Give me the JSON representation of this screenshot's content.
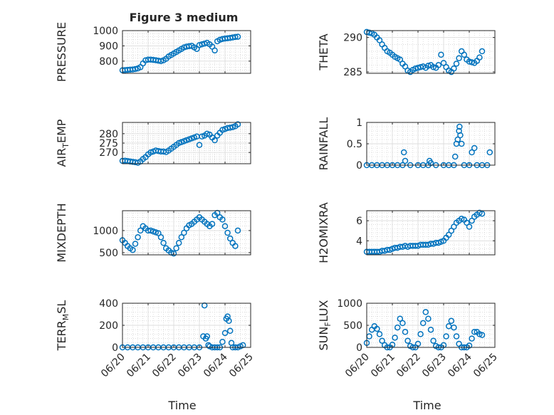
{
  "figure_title": "Figure 3 medium",
  "colors": {
    "marker": "#0072BD",
    "axes": "#262626",
    "grid": "#c8c8c8",
    "background": "#ffffff"
  },
  "chart_data": [
    {
      "type": "scatter",
      "name": "pressure",
      "ylabel": "PRESSURE",
      "xlim": [
        "06/20",
        "06/25"
      ],
      "ylim": [
        720,
        1000
      ],
      "yticks": [
        800,
        900,
        1000
      ],
      "grid": true,
      "marker": "open-circle",
      "x": [
        0.0,
        0.1,
        0.2,
        0.3,
        0.4,
        0.5,
        0.6,
        0.7,
        0.8,
        0.9,
        1.0,
        1.1,
        1.2,
        1.3,
        1.4,
        1.5,
        1.6,
        1.7,
        1.8,
        1.9,
        2.0,
        2.1,
        2.2,
        2.3,
        2.4,
        2.5,
        2.6,
        2.7,
        2.8,
        2.9,
        3.0,
        3.1,
        3.2,
        3.3,
        3.4,
        3.5,
        3.6,
        3.7,
        3.8,
        3.9,
        4.0,
        4.1,
        4.2,
        4.3,
        4.4,
        4.5
      ],
      "y": [
        740,
        741,
        743,
        744,
        745,
        748,
        752,
        760,
        785,
        805,
        810,
        810,
        808,
        806,
        803,
        800,
        805,
        815,
        830,
        840,
        850,
        860,
        870,
        880,
        890,
        895,
        898,
        900,
        890,
        880,
        905,
        910,
        915,
        920,
        910,
        895,
        870,
        930,
        940,
        945,
        948,
        950,
        952,
        955,
        958,
        960
      ]
    },
    {
      "type": "scatter",
      "name": "theta",
      "ylabel": "THETA",
      "xlim": [
        "06/20",
        "06/25"
      ],
      "ylim": [
        284.8,
        291
      ],
      "yticks": [
        285,
        290
      ],
      "grid": true,
      "marker": "open-circle",
      "x": [
        0.0,
        0.1,
        0.2,
        0.3,
        0.4,
        0.5,
        0.6,
        0.7,
        0.8,
        0.9,
        1.0,
        1.1,
        1.2,
        1.3,
        1.4,
        1.5,
        1.6,
        1.7,
        1.8,
        1.9,
        2.0,
        2.1,
        2.2,
        2.3,
        2.4,
        2.5,
        2.6,
        2.7,
        2.8,
        2.9,
        3.0,
        3.1,
        3.2,
        3.3,
        3.4,
        3.5,
        3.6,
        3.7,
        3.8,
        3.9,
        4.0,
        4.1,
        4.2,
        4.3,
        4.4,
        4.5
      ],
      "y": [
        290.8,
        290.7,
        290.6,
        290.4,
        290.0,
        289.6,
        289.0,
        288.5,
        288.0,
        287.8,
        287.5,
        287.2,
        287.0,
        286.8,
        286.2,
        285.8,
        285.2,
        285.0,
        285.3,
        285.5,
        285.6,
        285.7,
        285.8,
        285.6,
        285.9,
        286.0,
        285.7,
        285.6,
        286.0,
        287.5,
        286.3,
        285.7,
        285.2,
        285.0,
        285.5,
        286.2,
        287.0,
        288.0,
        287.5,
        286.8,
        286.5,
        286.4,
        286.3,
        286.6,
        287.1,
        288.0
      ]
    },
    {
      "type": "scatter",
      "name": "air_temp",
      "ylabel": "AIR_TEMP",
      "xlim": [
        "06/20",
        "06/25"
      ],
      "ylim": [
        264,
        286
      ],
      "yticks": [
        270,
        275,
        280
      ],
      "grid": true,
      "marker": "open-circle",
      "x": [
        0.0,
        0.1,
        0.2,
        0.3,
        0.4,
        0.5,
        0.6,
        0.7,
        0.8,
        0.9,
        1.0,
        1.1,
        1.2,
        1.3,
        1.4,
        1.5,
        1.6,
        1.7,
        1.8,
        1.9,
        2.0,
        2.1,
        2.2,
        2.3,
        2.4,
        2.5,
        2.6,
        2.7,
        2.8,
        2.9,
        3.0,
        3.1,
        3.2,
        3.3,
        3.4,
        3.5,
        3.6,
        3.7,
        3.8,
        3.9,
        4.0,
        4.1,
        4.2,
        4.3,
        4.4,
        4.5
      ],
      "y": [
        265.5,
        265.6,
        265.4,
        265.2,
        265.0,
        264.8,
        264.5,
        265.2,
        266.5,
        267.5,
        269.0,
        270.0,
        270.5,
        271.0,
        270.8,
        270.5,
        270.5,
        270.2,
        271.0,
        272.0,
        273.0,
        274.0,
        275.0,
        275.5,
        276.0,
        276.5,
        277.0,
        277.5,
        278.0,
        278.5,
        274.0,
        278.5,
        279.0,
        280.0,
        279.5,
        278.0,
        276.5,
        279.0,
        280.5,
        282.0,
        282.5,
        283.0,
        283.2,
        283.5,
        284.0,
        285.0
      ]
    },
    {
      "type": "scatter",
      "name": "rainfall",
      "ylabel": "RAINFALL",
      "xlim": [
        "06/20",
        "06/25"
      ],
      "ylim": [
        0,
        1
      ],
      "yticks": [
        0,
        0.5,
        1
      ],
      "grid": true,
      "marker": "open-circle",
      "x": [
        0.0,
        0.2,
        0.4,
        0.6,
        0.8,
        1.0,
        1.2,
        1.4,
        1.45,
        1.5,
        1.7,
        2.0,
        2.2,
        2.4,
        2.45,
        2.5,
        2.7,
        3.0,
        3.2,
        3.4,
        3.45,
        3.5,
        3.55,
        3.6,
        3.62,
        3.65,
        3.7,
        3.8,
        4.0,
        4.1,
        4.2,
        4.3,
        4.5,
        4.7,
        4.8
      ],
      "y": [
        0,
        0,
        0,
        0,
        0,
        0,
        0,
        0,
        0.3,
        0.1,
        0,
        0,
        0,
        0,
        0.1,
        0.05,
        0,
        0,
        0,
        0,
        0.2,
        0.5,
        0.6,
        0.8,
        0.9,
        0.7,
        0.5,
        0,
        0,
        0.3,
        0.4,
        0,
        0,
        0,
        0.3
      ]
    },
    {
      "type": "scatter",
      "name": "mixdepth",
      "ylabel": "MIXDEPTH",
      "xlim": [
        "06/20",
        "06/25"
      ],
      "ylim": [
        450,
        1450
      ],
      "yticks": [
        500,
        1000
      ],
      "grid": true,
      "marker": "open-circle",
      "x": [
        0.0,
        0.1,
        0.2,
        0.3,
        0.4,
        0.5,
        0.6,
        0.7,
        0.8,
        0.9,
        1.0,
        1.1,
        1.2,
        1.3,
        1.4,
        1.5,
        1.6,
        1.7,
        1.8,
        1.9,
        2.0,
        2.1,
        2.2,
        2.3,
        2.4,
        2.5,
        2.6,
        2.7,
        2.8,
        2.9,
        3.0,
        3.1,
        3.2,
        3.3,
        3.4,
        3.5,
        3.6,
        3.7,
        3.8,
        3.9,
        4.0,
        4.1,
        4.2,
        4.3,
        4.4,
        4.5
      ],
      "y": [
        780,
        720,
        650,
        600,
        560,
        700,
        850,
        1000,
        1100,
        1050,
        1000,
        1000,
        980,
        960,
        940,
        850,
        720,
        600,
        550,
        500,
        480,
        600,
        720,
        850,
        950,
        1050,
        1120,
        1150,
        1200,
        1250,
        1300,
        1250,
        1200,
        1150,
        1100,
        1150,
        1350,
        1400,
        1300,
        1250,
        1100,
        950,
        820,
        720,
        650,
        1000
      ]
    },
    {
      "type": "scatter",
      "name": "h2omixra",
      "ylabel": "H2OMIXRA",
      "xlim": [
        "06/20",
        "06/25"
      ],
      "ylim": [
        2.6,
        7
      ],
      "yticks": [
        4,
        6
      ],
      "grid": true,
      "marker": "open-circle",
      "x": [
        0.0,
        0.1,
        0.2,
        0.3,
        0.4,
        0.5,
        0.6,
        0.7,
        0.8,
        0.9,
        1.0,
        1.1,
        1.2,
        1.3,
        1.4,
        1.5,
        1.6,
        1.7,
        1.8,
        1.9,
        2.0,
        2.1,
        2.2,
        2.3,
        2.4,
        2.5,
        2.6,
        2.7,
        2.8,
        2.9,
        3.0,
        3.1,
        3.2,
        3.3,
        3.4,
        3.5,
        3.6,
        3.7,
        3.8,
        3.9,
        4.0,
        4.1,
        4.2,
        4.3,
        4.4,
        4.5
      ],
      "y": [
        2.9,
        2.9,
        2.9,
        2.9,
        2.9,
        2.9,
        3.0,
        3.0,
        3.1,
        3.1,
        3.2,
        3.3,
        3.3,
        3.4,
        3.4,
        3.5,
        3.4,
        3.5,
        3.5,
        3.5,
        3.5,
        3.6,
        3.6,
        3.6,
        3.6,
        3.7,
        3.7,
        3.8,
        3.8,
        3.9,
        4.0,
        4.3,
        4.6,
        5.0,
        5.4,
        5.8,
        6.0,
        6.2,
        6.1,
        5.8,
        5.4,
        6.0,
        6.4,
        6.6,
        6.8,
        6.7
      ]
    },
    {
      "type": "scatter",
      "name": "terr_msl",
      "ylabel": "TERR_MSL",
      "xlim": [
        "06/20",
        "06/25"
      ],
      "ylim": [
        0,
        400
      ],
      "yticks": [
        0,
        200,
        400
      ],
      "grid": true,
      "marker": "open-circle",
      "x": [
        0.0,
        0.2,
        0.4,
        0.6,
        0.8,
        1.0,
        1.2,
        1.4,
        1.6,
        1.8,
        2.0,
        2.2,
        2.4,
        2.6,
        2.8,
        3.0,
        3.15,
        3.2,
        3.25,
        3.3,
        3.35,
        3.4,
        3.5,
        3.6,
        3.7,
        3.8,
        3.9,
        4.0,
        4.05,
        4.1,
        4.15,
        4.2,
        4.25,
        4.3,
        4.4,
        4.5,
        4.6,
        4.7
      ],
      "y": [
        0,
        0,
        0,
        0,
        0,
        0,
        0,
        0,
        0,
        0,
        0,
        0,
        0,
        0,
        0,
        0,
        100,
        380,
        80,
        100,
        20,
        10,
        0,
        0,
        0,
        0,
        50,
        130,
        260,
        280,
        240,
        150,
        40,
        0,
        0,
        0,
        10,
        20
      ]
    },
    {
      "type": "scatter",
      "name": "sun_flux",
      "ylabel": "SUN_FLUX",
      "xlim": [
        "06/20",
        "06/25"
      ],
      "ylim": [
        0,
        1000
      ],
      "yticks": [
        0,
        500,
        1000
      ],
      "grid": true,
      "marker": "open-circle",
      "x": [
        0.0,
        0.1,
        0.2,
        0.3,
        0.4,
        0.5,
        0.6,
        0.7,
        0.8,
        0.9,
        1.0,
        1.1,
        1.2,
        1.3,
        1.4,
        1.5,
        1.6,
        1.7,
        1.8,
        1.9,
        2.0,
        2.1,
        2.2,
        2.3,
        2.4,
        2.5,
        2.6,
        2.7,
        2.8,
        2.9,
        3.0,
        3.1,
        3.2,
        3.3,
        3.4,
        3.5,
        3.6,
        3.7,
        3.8,
        3.9,
        4.0,
        4.1,
        4.2,
        4.3,
        4.4,
        4.5
      ],
      "y": [
        100,
        250,
        400,
        480,
        420,
        300,
        150,
        50,
        0,
        0,
        60,
        220,
        450,
        650,
        550,
        350,
        150,
        30,
        0,
        0,
        80,
        300,
        550,
        800,
        650,
        400,
        150,
        30,
        0,
        0,
        50,
        250,
        480,
        600,
        450,
        250,
        80,
        0,
        0,
        0,
        40,
        200,
        350,
        350,
        300,
        280
      ]
    }
  ],
  "x_tick_labels": [
    "06/20",
    "06/21",
    "06/22",
    "06/23",
    "06/24",
    "06/25"
  ],
  "xlabel": "Time"
}
